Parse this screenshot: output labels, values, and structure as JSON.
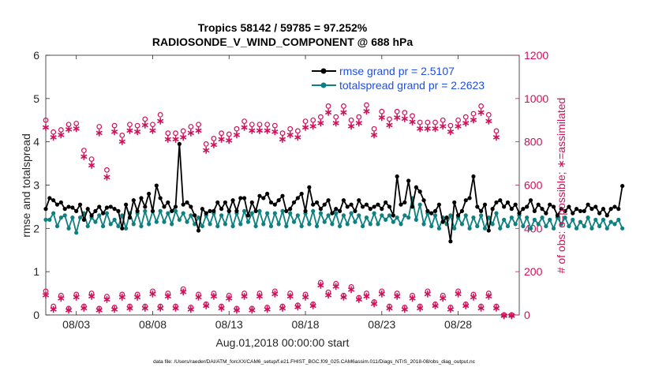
{
  "chart_data": {
    "type": "line",
    "title_line1": "Tropics 58142 / 59785 = 97.252%",
    "title_line2": "RADIOSONDE_V_WIND_COMPONENT @ 688 hPa",
    "xlabel": "Aug.01,2018 00:00:00 start",
    "ylabel_left": "rmse and totalspread",
    "ylabel_right": "# of obs: o=possible; ∗=assimilated",
    "footer": "data file: /Users/raeder/DAI/ATM_forcXX/CAM6_setup/f.e21.FHIST_BGC.f09_025.CAM6assim.011/Diags_NTrS_2018-08/obs_diag_output.nc",
    "x_ticks": [
      {
        "label": "08/03",
        "x": 3
      },
      {
        "label": "08/08",
        "x": 8
      },
      {
        "label": "08/13",
        "x": 13
      },
      {
        "label": "08/18",
        "x": 18
      },
      {
        "label": "08/23",
        "x": 23
      },
      {
        "label": "08/28",
        "x": 28
      }
    ],
    "xlim": [
      1,
      32
    ],
    "ylim_left": [
      0,
      6
    ],
    "yticks_left": [
      "0",
      "1",
      "2",
      "3",
      "4",
      "5",
      "6"
    ],
    "ylim_right": [
      0,
      1200
    ],
    "yticks_right": [
      "0",
      "200",
      "400",
      "600",
      "800",
      "1000",
      "1200"
    ],
    "colors": {
      "rmse": "#000000",
      "spread": "#0e8080",
      "obs": "#d0105a",
      "legend_text": "#1f4fe0",
      "axis": "#262626"
    },
    "x_step": 0.25,
    "x_start": 1.0,
    "series": [
      {
        "name": "rmse grand pr = 2.5107",
        "key": "rmse",
        "values": [
          2.45,
          2.7,
          2.65,
          2.55,
          2.6,
          2.45,
          2.5,
          2.48,
          2.4,
          2.55,
          2.2,
          2.45,
          2.3,
          2.4,
          2.5,
          2.35,
          2.48,
          2.5,
          2.45,
          2.4,
          2.0,
          2.55,
          2.25,
          2.65,
          2.4,
          2.7,
          2.5,
          2.8,
          2.4,
          2.99,
          2.7,
          2.5,
          2.6,
          2.4,
          2.5,
          3.95,
          2.55,
          2.6,
          2.5,
          2.3,
          1.95,
          2.45,
          2.35,
          2.4,
          2.4,
          2.6,
          2.45,
          2.6,
          2.4,
          2.65,
          2.4,
          2.7,
          2.7,
          2.3,
          2.6,
          2.4,
          2.75,
          2.7,
          2.8,
          2.6,
          2.55,
          2.65,
          2.75,
          2.4,
          2.45,
          2.6,
          2.7,
          2.8,
          2.4,
          2.95,
          2.55,
          2.6,
          2.45,
          2.55,
          2.65,
          2.35,
          2.45,
          2.4,
          2.65,
          2.5,
          2.55,
          2.4,
          2.65,
          2.5,
          2.55,
          2.45,
          2.5,
          2.55,
          2.45,
          2.6,
          2.5,
          2.3,
          3.2,
          2.55,
          2.6,
          3.1,
          2.5,
          2.95,
          2.85,
          2.65,
          2.4,
          2.35,
          2.4,
          2.55,
          2.15,
          2.25,
          1.7,
          2.6,
          2.3,
          2.4,
          2.65,
          2.7,
          3.2,
          2.5,
          2.4,
          2.55,
          1.95,
          2.45,
          2.6,
          2.65,
          2.5,
          2.6,
          2.45,
          2.55,
          2.35,
          2.45,
          2.5,
          2.65,
          2.4,
          2.55,
          2.45,
          2.35,
          2.55,
          2.5,
          2.3,
          2.45,
          2.4,
          2.5,
          2.35,
          2.45,
          2.4,
          2.4,
          2.55,
          2.45,
          2.5,
          2.35,
          2.45,
          2.3,
          2.45,
          2.5,
          2.45,
          2.98
        ]
      },
      {
        "name": "totalspread grand pr = 2.2623",
        "key": "spread",
        "values": [
          2.2,
          2.2,
          2.35,
          2.05,
          2.25,
          2.3,
          2.0,
          2.25,
          1.9,
          2.25,
          2.35,
          2.05,
          2.25,
          2.15,
          2.3,
          2.05,
          2.35,
          2.1,
          2.2,
          2.05,
          2.3,
          2.0,
          2.35,
          2.1,
          2.35,
          2.05,
          2.4,
          2.1,
          2.4,
          2.15,
          2.4,
          2.15,
          2.35,
          2.1,
          2.4,
          2.2,
          2.35,
          2.15,
          2.3,
          2.1,
          2.25,
          2.05,
          2.3,
          2.1,
          2.35,
          2.05,
          2.3,
          2.1,
          2.4,
          2.05,
          2.35,
          2.1,
          2.4,
          2.15,
          2.35,
          2.05,
          2.4,
          2.1,
          2.35,
          2.05,
          2.35,
          2.1,
          2.4,
          2.05,
          2.35,
          2.15,
          2.3,
          2.05,
          2.35,
          2.1,
          2.4,
          2.05,
          2.35,
          2.15,
          2.3,
          2.1,
          2.35,
          2.05,
          2.3,
          2.1,
          2.35,
          2.15,
          2.3,
          2.05,
          2.25,
          2.1,
          2.35,
          2.1,
          2.3,
          2.2,
          2.3,
          2.15,
          2.25,
          2.1,
          2.3,
          2.25,
          2.7,
          2.2,
          2.55,
          2.1,
          2.35,
          2.05,
          2.3,
          2.0,
          2.25,
          2.1,
          2.3,
          2.0,
          2.25,
          2.1,
          2.3,
          2.0,
          2.25,
          2.05,
          2.3,
          2.0,
          2.25,
          2.1,
          2.35,
          2.0,
          2.2,
          2.05,
          2.25,
          2.1,
          2.3,
          2.05,
          2.25,
          2.0,
          2.2,
          2.1,
          2.25,
          2.05,
          2.2,
          2.0,
          2.25,
          2.1,
          2.25,
          2.05,
          2.2,
          2.0,
          2.15,
          2.05,
          2.25,
          2.0,
          2.2,
          2.05,
          2.2,
          2.0,
          2.15,
          2.1,
          2.2,
          2.0
        ]
      }
    ],
    "obs_top": {
      "name": "possible / assimilated (00Z & 12Z)",
      "x": [
        1,
        1.5,
        2,
        2.5,
        3,
        3.5,
        4,
        4.5,
        5,
        5.5,
        6,
        6.5,
        7,
        7.5,
        8,
        8.5,
        9,
        9.5,
        10,
        10.5,
        11,
        11.5,
        12,
        12.5,
        13,
        13.5,
        14,
        14.5,
        15,
        15.5,
        16,
        16.5,
        17,
        17.5,
        18,
        18.5,
        19,
        19.5,
        20,
        20.5,
        21,
        21.5,
        22,
        22.5,
        23,
        23.5,
        24,
        24.5,
        25,
        25.5,
        26,
        26.5,
        27,
        27.5,
        28,
        28.5,
        29,
        29.5,
        30,
        30.5,
        31,
        31.5
      ],
      "possible": [
        900,
        845,
        855,
        880,
        885,
        760,
        720,
        870,
        670,
        875,
        830,
        880,
        875,
        905,
        880,
        925,
        840,
        840,
        850,
        870,
        880,
        790,
        815,
        840,
        835,
        860,
        895,
        880,
        880,
        880,
        875,
        840,
        860,
        850,
        895,
        900,
        915,
        965,
        915,
        965,
        900,
        915,
        970,
        860,
        940,
        905,
        940,
        935,
        920,
        890,
        890,
        890,
        900,
        875,
        900,
        915,
        930,
        965,
        925,
        850,
        0,
        0
      ],
      "assimilated": [
        870,
        825,
        835,
        860,
        865,
        735,
        695,
        845,
        640,
        850,
        805,
        855,
        850,
        880,
        855,
        900,
        815,
        815,
        825,
        845,
        855,
        765,
        790,
        815,
        810,
        835,
        870,
        855,
        855,
        855,
        850,
        815,
        835,
        825,
        870,
        875,
        890,
        940,
        890,
        940,
        875,
        890,
        945,
        835,
        915,
        880,
        915,
        910,
        895,
        865,
        865,
        865,
        875,
        850,
        875,
        890,
        905,
        940,
        900,
        825,
        0,
        0
      ]
    },
    "obs_bottom": {
      "name": "bottom counts (06Z & 18Z)",
      "x": [
        1.0,
        1.5,
        2.0,
        2.5,
        3.0,
        3.5,
        4.0,
        4.5,
        5.0,
        5.5,
        6.0,
        6.5,
        7.0,
        7.5,
        8.0,
        8.5,
        9.0,
        9.5,
        10.0,
        10.5,
        11.0,
        11.5,
        12.0,
        12.5,
        13.0,
        13.5,
        14.0,
        14.5,
        15.0,
        15.5,
        16.0,
        16.5,
        17.0,
        17.5,
        18.0,
        18.5,
        19.0,
        19.5,
        20.0,
        20.5,
        21.0,
        21.5,
        22.0,
        22.5,
        23.0,
        23.5,
        24.0,
        24.5,
        25.0,
        25.5,
        26.0,
        26.5,
        27.0,
        27.5,
        28.0,
        28.5,
        29.0,
        29.5,
        30.0,
        30.5,
        31.0,
        31.5
      ],
      "possible": [
        110,
        40,
        90,
        30,
        95,
        40,
        100,
        30,
        85,
        35,
        95,
        40,
        95,
        40,
        110,
        40,
        100,
        40,
        120,
        35,
        95,
        50,
        100,
        40,
        90,
        30,
        100,
        30,
        100,
        35,
        110,
        40,
        100,
        45,
        95,
        50,
        150,
        105,
        145,
        90,
        130,
        80,
        100,
        60,
        110,
        40,
        100,
        35,
        90,
        40,
        110,
        50,
        90,
        35,
        110,
        50,
        95,
        40,
        100,
        40,
        0,
        0
      ],
      "assimilated": [
        95,
        30,
        80,
        25,
        85,
        35,
        90,
        25,
        75,
        30,
        85,
        35,
        85,
        35,
        100,
        35,
        90,
        35,
        110,
        30,
        85,
        45,
        90,
        35,
        80,
        25,
        90,
        25,
        90,
        30,
        100,
        35,
        90,
        40,
        85,
        45,
        140,
        95,
        135,
        85,
        120,
        75,
        90,
        55,
        100,
        35,
        90,
        30,
        80,
        35,
        100,
        45,
        80,
        30,
        100,
        45,
        85,
        35,
        90,
        35,
        0,
        0
      ]
    }
  }
}
